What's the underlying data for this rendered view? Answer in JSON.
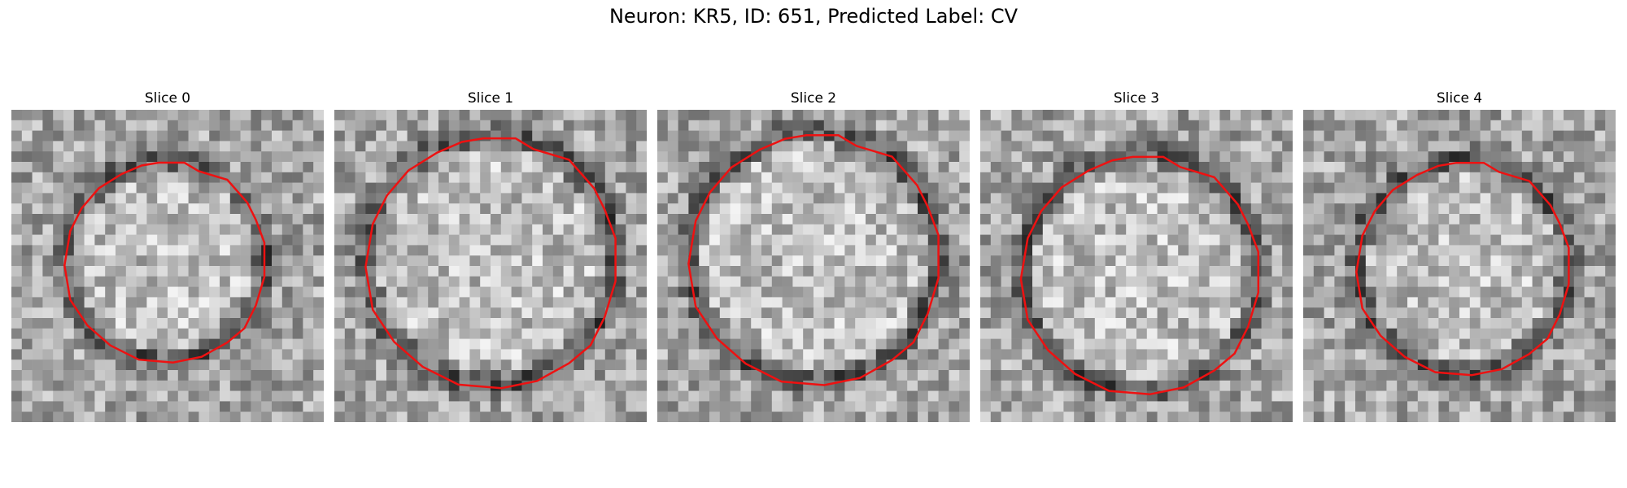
{
  "figure": {
    "title": "Neuron: KR5, ID: 651, Predicted Label: CV",
    "outline_color": "#ee1111",
    "panels": [
      {
        "title": "Slice 0",
        "seed": 11,
        "ring_radius": 0.32,
        "center": [
          0.49,
          0.48
        ]
      },
      {
        "title": "Slice 1",
        "seed": 23,
        "ring_radius": 0.4,
        "center": [
          0.5,
          0.48
        ]
      },
      {
        "title": "Slice 2",
        "seed": 37,
        "ring_radius": 0.4,
        "center": [
          0.5,
          0.47
        ]
      },
      {
        "title": "Slice 3",
        "seed": 41,
        "ring_radius": 0.38,
        "center": [
          0.51,
          0.52
        ]
      },
      {
        "title": "Slice 4",
        "seed": 59,
        "ring_radius": 0.34,
        "center": [
          0.51,
          0.5
        ]
      }
    ]
  }
}
